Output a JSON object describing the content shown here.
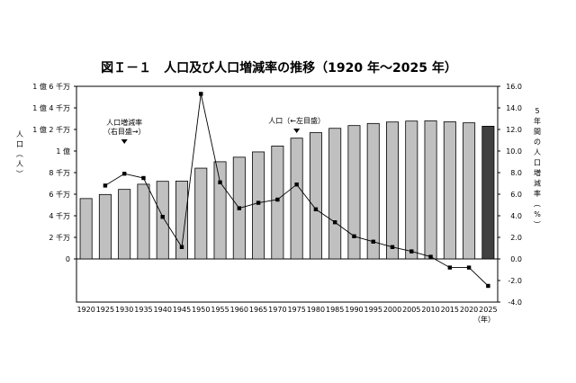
{
  "chart_data": {
    "type": "bar+line",
    "title": "図Ｉ－１　人口及び人口増減率の推移（1920 年～2025 年）",
    "xlabel": "（年）",
    "categories": [
      "1920",
      "1925",
      "1930",
      "1935",
      "1940",
      "1945",
      "1950",
      "1955",
      "1960",
      "1965",
      "1970",
      "1975",
      "1980",
      "1985",
      "1990",
      "1995",
      "2000",
      "2005",
      "2010",
      "2015",
      "2020",
      "2025"
    ],
    "y_left": {
      "label": "人口（人）",
      "ticks": [
        "1 億 6 千万",
        "1 億 4 千万",
        "1 億 2 千万",
        "1 億",
        "8 千万",
        "6 千万",
        "4 千万",
        "2 千万",
        "0"
      ],
      "tick_values": [
        160000000,
        140000000,
        120000000,
        100000000,
        80000000,
        60000000,
        40000000,
        20000000,
        0
      ],
      "range": [
        -40000000,
        160000000
      ]
    },
    "y_right": {
      "label": "5年間の人口増減率（%）",
      "ticks": [
        "16.0",
        "14.0",
        "12.0",
        "10.0",
        "8.0",
        "6.0",
        "4.0",
        "2.0",
        "0.0",
        "-2.0",
        "-4.0"
      ],
      "tick_values": [
        16,
        14,
        12,
        10,
        8,
        6,
        4,
        2,
        0,
        -2,
        -4
      ],
      "range": [
        -4,
        16
      ]
    },
    "grid": false,
    "series": [
      {
        "name": "人口",
        "type": "bar",
        "axis": "left",
        "values": [
          55960000,
          59740000,
          64450000,
          69250000,
          71930000,
          72150000,
          84120000,
          90080000,
          94300000,
          99210000,
          104670000,
          111940000,
          117060000,
          121050000,
          123610000,
          125570000,
          126930000,
          127770000,
          128060000,
          127100000,
          126150000,
          123000000
        ],
        "highlight_last": true
      },
      {
        "name": "人口増減率",
        "type": "line",
        "axis": "right",
        "values": [
          null,
          6.8,
          7.9,
          7.5,
          3.9,
          1.1,
          15.3,
          7.1,
          4.7,
          5.2,
          5.5,
          6.9,
          4.6,
          3.4,
          2.1,
          1.6,
          1.1,
          0.7,
          0.2,
          -0.8,
          -0.8,
          -2.5
        ]
      }
    ],
    "annotations": [
      {
        "text": [
          "人口増減率",
          "（右目盛→）"
        ],
        "category": "1930"
      },
      {
        "text": [
          "人口（←左目盛）"
        ],
        "category": "1975"
      }
    ],
    "colors": {
      "bar": "#c0c0c0",
      "bar_last": "#404040",
      "line": "#000000"
    }
  }
}
